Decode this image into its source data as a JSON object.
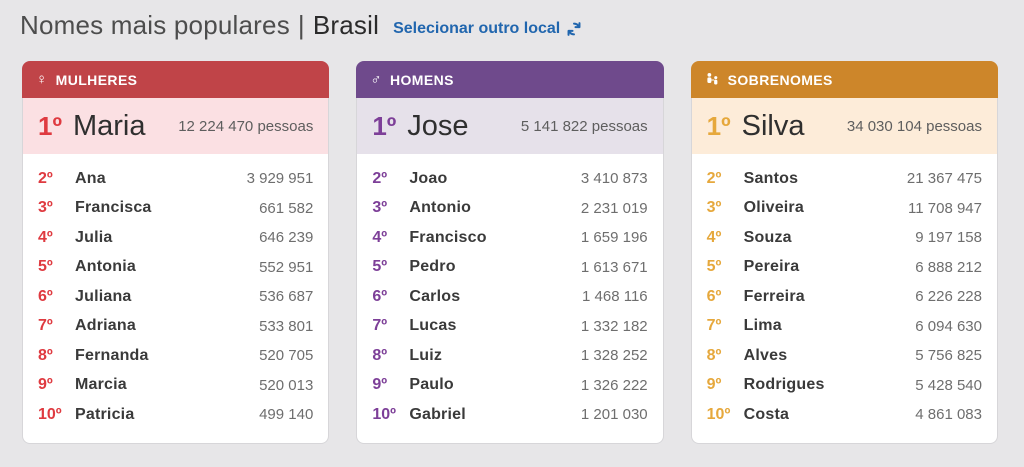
{
  "page": {
    "title_main": "Nomes mais populares",
    "title_separator": "|",
    "title_location": "Brasil",
    "change_location_label": "Selecionar outro local",
    "link_color": "#2166ae",
    "background_color": "#e7e6e8"
  },
  "cards": [
    {
      "id": "mulheres",
      "header": "MULHERES",
      "icon": "female-icon",
      "colors": {
        "header_bg": "#c04448",
        "rank": "#df3a40",
        "first_row_bg": "#fbe0e3"
      },
      "first": {
        "rank": "1º",
        "name": "Maria",
        "count": "12 224 470 pessoas"
      },
      "rows": [
        {
          "rank": "2º",
          "name": "Ana",
          "value": "3 929 951"
        },
        {
          "rank": "3º",
          "name": "Francisca",
          "value": "661 582"
        },
        {
          "rank": "4º",
          "name": "Julia",
          "value": "646 239"
        },
        {
          "rank": "5º",
          "name": "Antonia",
          "value": "552 951"
        },
        {
          "rank": "6º",
          "name": "Juliana",
          "value": "536 687"
        },
        {
          "rank": "7º",
          "name": "Adriana",
          "value": "533 801"
        },
        {
          "rank": "8º",
          "name": "Fernanda",
          "value": "520 705"
        },
        {
          "rank": "9º",
          "name": "Marcia",
          "value": "520 013"
        },
        {
          "rank": "10º",
          "name": "Patricia",
          "value": "499 140"
        }
      ]
    },
    {
      "id": "homens",
      "header": "HOMENS",
      "icon": "male-icon",
      "colors": {
        "header_bg": "#6f4a8c",
        "rank": "#7d3f98",
        "first_row_bg": "#e6e1ea"
      },
      "first": {
        "rank": "1º",
        "name": "Jose",
        "count": "5 141 822 pessoas"
      },
      "rows": [
        {
          "rank": "2º",
          "name": "Joao",
          "value": "3 410 873"
        },
        {
          "rank": "3º",
          "name": "Antonio",
          "value": "2 231 019"
        },
        {
          "rank": "4º",
          "name": "Francisco",
          "value": "1 659 196"
        },
        {
          "rank": "5º",
          "name": "Pedro",
          "value": "1 613 671"
        },
        {
          "rank": "6º",
          "name": "Carlos",
          "value": "1 468 116"
        },
        {
          "rank": "7º",
          "name": "Lucas",
          "value": "1 332 182"
        },
        {
          "rank": "8º",
          "name": "Luiz",
          "value": "1 328 252"
        },
        {
          "rank": "9º",
          "name": "Paulo",
          "value": "1 326 222"
        },
        {
          "rank": "10º",
          "name": "Gabriel",
          "value": "1 201 030"
        }
      ]
    },
    {
      "id": "sobrenomes",
      "header": "SOBRENOMES",
      "icon": "family-icon",
      "colors": {
        "header_bg": "#cd862a",
        "rank": "#e6a83c",
        "first_row_bg": "#fdecd9"
      },
      "first": {
        "rank": "1º",
        "name": "Silva",
        "count": "34 030 104 pessoas"
      },
      "rows": [
        {
          "rank": "2º",
          "name": "Santos",
          "value": "21 367 475"
        },
        {
          "rank": "3º",
          "name": "Oliveira",
          "value": "11 708 947"
        },
        {
          "rank": "4º",
          "name": "Souza",
          "value": "9 197 158"
        },
        {
          "rank": "5º",
          "name": "Pereira",
          "value": "6 888 212"
        },
        {
          "rank": "6º",
          "name": "Ferreira",
          "value": "6 226 228"
        },
        {
          "rank": "7º",
          "name": "Lima",
          "value": "6 094 630"
        },
        {
          "rank": "8º",
          "name": "Alves",
          "value": "5 756 825"
        },
        {
          "rank": "9º",
          "name": "Rodrigues",
          "value": "5 428 540"
        },
        {
          "rank": "10º",
          "name": "Costa",
          "value": "4 861 083"
        }
      ]
    }
  ]
}
